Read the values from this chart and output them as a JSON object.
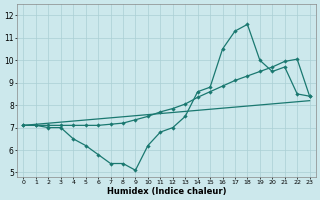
{
  "title": "",
  "xlabel": "Humidex (Indice chaleur)",
  "xlim": [
    -0.5,
    23.5
  ],
  "ylim": [
    4.8,
    12.5
  ],
  "xticks": [
    0,
    1,
    2,
    3,
    4,
    5,
    6,
    7,
    8,
    9,
    10,
    11,
    12,
    13,
    14,
    15,
    16,
    17,
    18,
    19,
    20,
    21,
    22,
    23
  ],
  "yticks": [
    5,
    6,
    7,
    8,
    9,
    10,
    11,
    12
  ],
  "bg_color": "#cce8ec",
  "grid_color": "#aacfd4",
  "line_color": "#1a7870",
  "line1_x": [
    0,
    1,
    2,
    3,
    4,
    5,
    6,
    7,
    8,
    9,
    10,
    11,
    12,
    13,
    14,
    15,
    16,
    17,
    18,
    19,
    20,
    21,
    22,
    23
  ],
  "line1_y": [
    7.1,
    7.1,
    7.0,
    7.0,
    6.5,
    6.2,
    5.8,
    5.4,
    5.4,
    5.1,
    6.2,
    6.8,
    7.0,
    7.5,
    8.6,
    8.8,
    10.5,
    11.3,
    11.6,
    10.0,
    9.5,
    9.7,
    8.5,
    8.4
  ],
  "line2_x": [
    0,
    1,
    2,
    3,
    4,
    5,
    6,
    7,
    8,
    9,
    10,
    11,
    12,
    13,
    14,
    15,
    16,
    17,
    18,
    19,
    20,
    21,
    22,
    23
  ],
  "line2_y": [
    7.1,
    7.1,
    7.1,
    7.1,
    7.1,
    7.1,
    7.1,
    7.15,
    7.2,
    7.35,
    7.5,
    7.7,
    7.85,
    8.05,
    8.35,
    8.6,
    8.85,
    9.1,
    9.3,
    9.5,
    9.7,
    9.95,
    10.05,
    8.4
  ],
  "line3_x": [
    0,
    23
  ],
  "line3_y": [
    7.1,
    8.2
  ]
}
